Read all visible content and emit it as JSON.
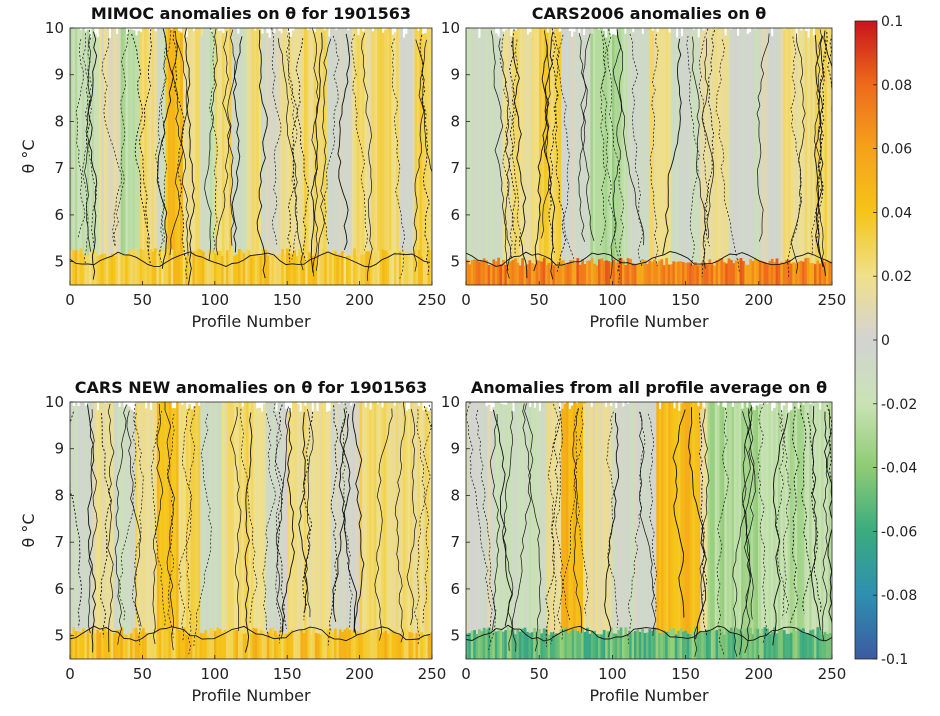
{
  "figure": {
    "colorbar": {
      "colormap": "diverging blue-green-grey-yellow-red",
      "range": [
        -0.1,
        0.1
      ],
      "ticks": [
        0.1,
        0.08,
        0.06,
        0.04,
        0.02,
        0,
        -0.02,
        -0.04,
        -0.06,
        -0.08,
        -0.1
      ],
      "tick_labels": [
        "0.1",
        "0.08",
        "0.06",
        "0.04",
        "0.02",
        "0",
        "-0.02",
        "-0.04",
        "-0.06",
        "-0.08",
        "-0.1"
      ],
      "colors": [
        "#3c5aa0",
        "#2f8fb0",
        "#3bab7f",
        "#8ecb74",
        "#c9e3b4",
        "#d3d3d3",
        "#f0e08a",
        "#f5c518",
        "#f5a21a",
        "#ef6a1c",
        "#c8141c"
      ]
    }
  },
  "chart_data": [
    {
      "type": "heatmap",
      "title": "MIMOC anomalies on θ  for 1901563",
      "xlabel": "Profile Number",
      "ylabel": "θ °C",
      "xlim": [
        0,
        250
      ],
      "ylim": [
        4.5,
        10
      ],
      "xticks": [
        "0",
        "50",
        "100",
        "150",
        "200",
        "250"
      ],
      "yticks": [
        "5",
        "6",
        "7",
        "8",
        "9",
        "10"
      ],
      "profile_bands": [
        {
          "x": [
            0,
            20
          ],
          "value": -0.02
        },
        {
          "x": [
            20,
            35
          ],
          "value": 0.01
        },
        {
          "x": [
            35,
            48
          ],
          "value": -0.025
        },
        {
          "x": [
            48,
            60
          ],
          "value": 0.02
        },
        {
          "x": [
            60,
            66
          ],
          "value": -0.01
        },
        {
          "x": [
            66,
            78
          ],
          "value": 0.045
        },
        {
          "x": [
            78,
            90
          ],
          "value": 0.02
        },
        {
          "x": [
            90,
            100
          ],
          "value": -0.015
        },
        {
          "x": [
            100,
            112
          ],
          "value": 0.025
        },
        {
          "x": [
            112,
            122
          ],
          "value": -0.01
        },
        {
          "x": [
            122,
            132
          ],
          "value": 0.02
        },
        {
          "x": [
            132,
            145
          ],
          "value": 0.0
        },
        {
          "x": [
            145,
            160
          ],
          "value": 0.02
        },
        {
          "x": [
            160,
            178
          ],
          "value": 0.025
        },
        {
          "x": [
            178,
            195
          ],
          "value": 0.0
        },
        {
          "x": [
            195,
            212
          ],
          "value": 0.02
        },
        {
          "x": [
            212,
            228
          ],
          "value": 0.025
        },
        {
          "x": [
            228,
            238
          ],
          "value": 0.0
        },
        {
          "x": [
            238,
            250
          ],
          "value": 0.03
        }
      ],
      "bottom_layer": {
        "theta_range": [
          4.5,
          5.2
        ],
        "value": 0.035
      }
    },
    {
      "type": "heatmap",
      "title": "CARS2006 anomalies on θ",
      "xlabel": "Profile Number",
      "ylabel": "",
      "xlim": [
        0,
        250
      ],
      "ylim": [
        4.5,
        10
      ],
      "xticks": [
        "0",
        "50",
        "100",
        "150",
        "200",
        "250"
      ],
      "yticks": [
        "5",
        "6",
        "7",
        "8",
        "9",
        "10"
      ],
      "profile_bands": [
        {
          "x": [
            0,
            25
          ],
          "value": -0.01
        },
        {
          "x": [
            25,
            45
          ],
          "value": 0.02
        },
        {
          "x": [
            45,
            65
          ],
          "value": 0.03
        },
        {
          "x": [
            65,
            85
          ],
          "value": 0.0
        },
        {
          "x": [
            85,
            110
          ],
          "value": -0.03
        },
        {
          "x": [
            110,
            125
          ],
          "value": -0.01
        },
        {
          "x": [
            125,
            140
          ],
          "value": 0.02
        },
        {
          "x": [
            140,
            160
          ],
          "value": -0.01
        },
        {
          "x": [
            160,
            180
          ],
          "value": 0.015
        },
        {
          "x": [
            180,
            200
          ],
          "value": -0.01
        },
        {
          "x": [
            200,
            215
          ],
          "value": 0.0
        },
        {
          "x": [
            215,
            235
          ],
          "value": 0.02
        },
        {
          "x": [
            235,
            250
          ],
          "value": 0.025
        }
      ],
      "bottom_layer": {
        "theta_range": [
          4.5,
          5.0
        ],
        "value": 0.07
      }
    },
    {
      "type": "heatmap",
      "title": "CARS NEW anomalies on θ for 1901563",
      "xlabel": "Profile Number",
      "ylabel": "θ °C",
      "xlim": [
        0,
        250
      ],
      "ylim": [
        4.5,
        10
      ],
      "xticks": [
        "0",
        "50",
        "100",
        "150",
        "200",
        "250"
      ],
      "yticks": [
        "5",
        "6",
        "7",
        "8",
        "9",
        "10"
      ],
      "profile_bands": [
        {
          "x": [
            0,
            15
          ],
          "value": -0.01
        },
        {
          "x": [
            15,
            30
          ],
          "value": 0.015
        },
        {
          "x": [
            30,
            45
          ],
          "value": -0.01
        },
        {
          "x": [
            45,
            60
          ],
          "value": 0.02
        },
        {
          "x": [
            60,
            75
          ],
          "value": 0.045
        },
        {
          "x": [
            75,
            90
          ],
          "value": 0.025
        },
        {
          "x": [
            90,
            105
          ],
          "value": -0.01
        },
        {
          "x": [
            105,
            120
          ],
          "value": 0.02
        },
        {
          "x": [
            120,
            135
          ],
          "value": 0.025
        },
        {
          "x": [
            135,
            150
          ],
          "value": -0.005
        },
        {
          "x": [
            150,
            165
          ],
          "value": 0.02
        },
        {
          "x": [
            165,
            180
          ],
          "value": 0.015
        },
        {
          "x": [
            180,
            200
          ],
          "value": 0.0
        },
        {
          "x": [
            200,
            220
          ],
          "value": 0.025
        },
        {
          "x": [
            220,
            250
          ],
          "value": 0.02
        }
      ],
      "bottom_layer": {
        "theta_range": [
          4.5,
          5.1
        ],
        "value": 0.04
      }
    },
    {
      "type": "heatmap",
      "title": "Anomalies from all profile average on θ",
      "xlabel": "Profile Number",
      "ylabel": "",
      "xlim": [
        0,
        250
      ],
      "ylim": [
        4.5,
        10
      ],
      "xticks": [
        "0",
        "50",
        "100",
        "150",
        "200",
        "250"
      ],
      "yticks": [
        "5",
        "6",
        "7",
        "8",
        "9",
        "10"
      ],
      "profile_bands": [
        {
          "x": [
            0,
            20
          ],
          "value": 0.0
        },
        {
          "x": [
            20,
            55
          ],
          "value": -0.015
        },
        {
          "x": [
            55,
            65
          ],
          "value": 0.02
        },
        {
          "x": [
            65,
            80
          ],
          "value": 0.05
        },
        {
          "x": [
            80,
            100
          ],
          "value": 0.015
        },
        {
          "x": [
            100,
            115
          ],
          "value": -0.005
        },
        {
          "x": [
            115,
            130
          ],
          "value": 0.0
        },
        {
          "x": [
            130,
            160
          ],
          "value": 0.045
        },
        {
          "x": [
            160,
            165
          ],
          "value": 0.01
        },
        {
          "x": [
            165,
            200
          ],
          "value": -0.03
        },
        {
          "x": [
            200,
            250
          ],
          "value": -0.025
        }
      ],
      "bottom_layer": {
        "theta_range": [
          4.5,
          5.1
        ],
        "value": -0.05
      }
    }
  ]
}
